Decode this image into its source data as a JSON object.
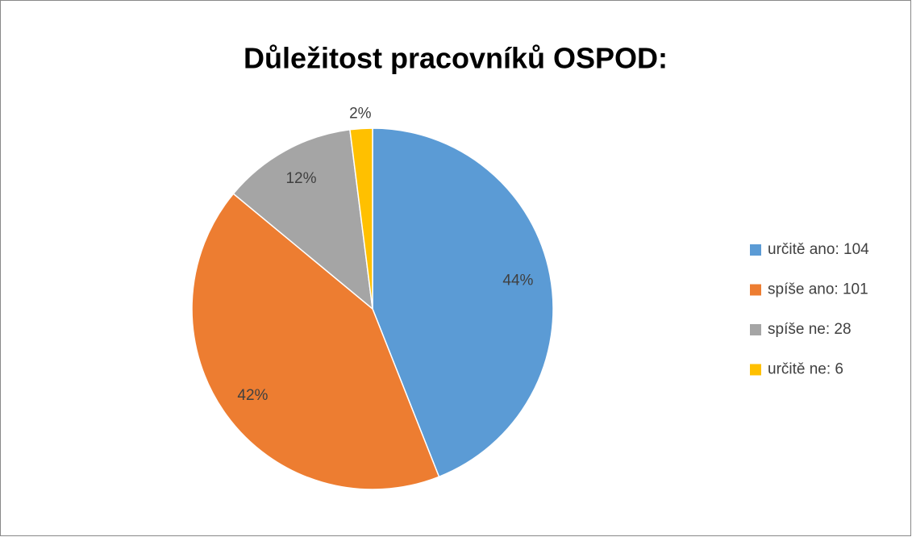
{
  "chart_data": {
    "type": "pie",
    "title": "Důležitost pracovníků OSPOD:",
    "categories": [
      "určitě ano: 104",
      "spíše ano: 101",
      "spíše ne: 28",
      "určitě ne: 6"
    ],
    "values": [
      44,
      42,
      12,
      2
    ],
    "value_labels": [
      "44%",
      "42%",
      "12%",
      "2%"
    ],
    "colors": [
      "#5b9bd5",
      "#ed7d31",
      "#a5a5a5",
      "#ffc000"
    ],
    "legend": "right"
  }
}
